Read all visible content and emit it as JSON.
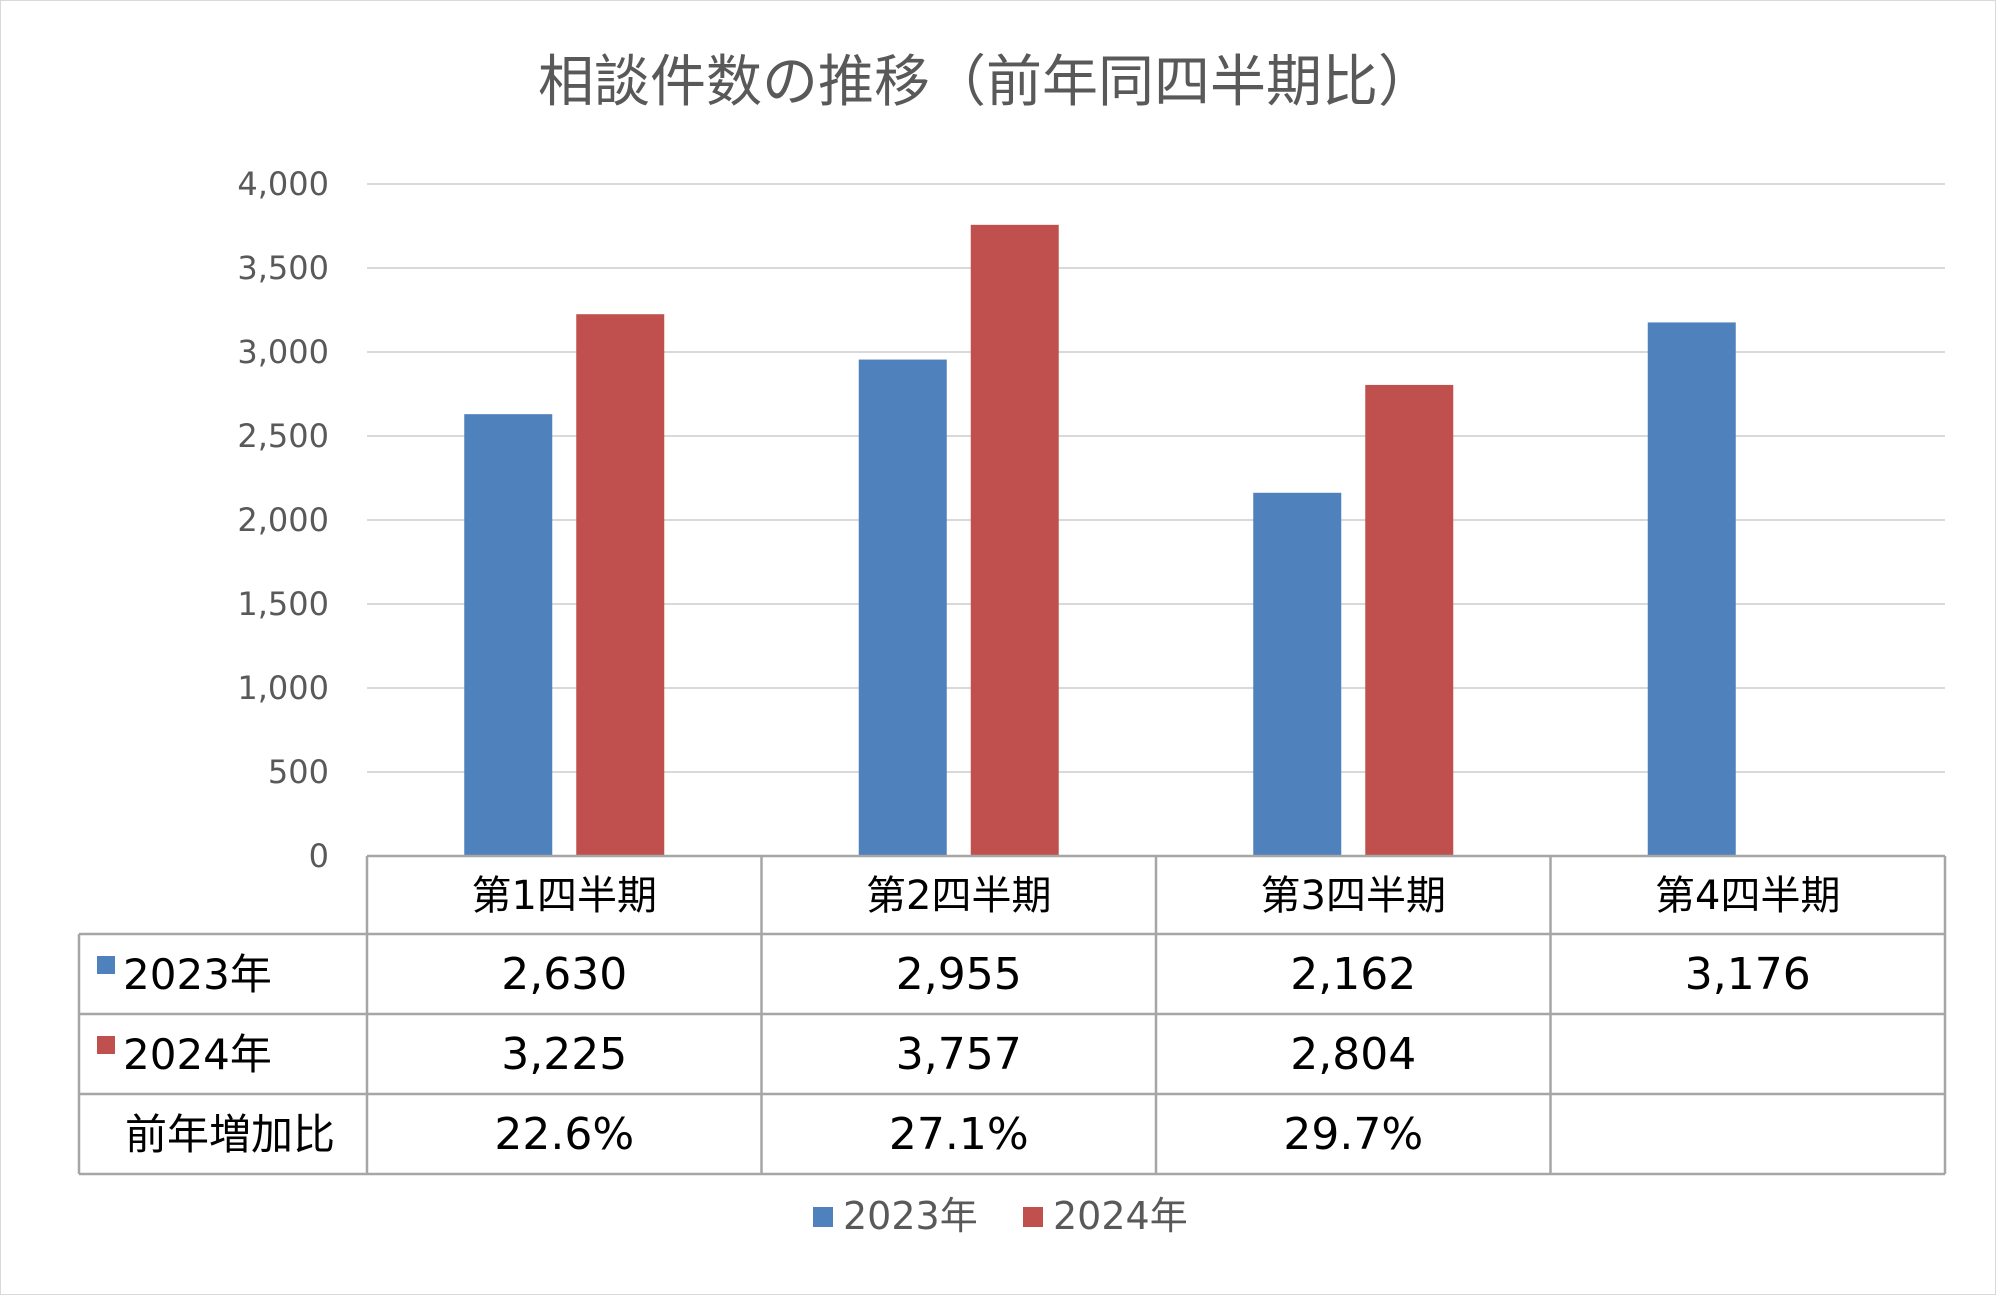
{
  "chart_data": {
    "type": "bar",
    "title": "相談件数の推移（前年同四半期比）",
    "categories": [
      "第1四半期",
      "第2四半期",
      "第3四半期",
      "第4四半期"
    ],
    "series": [
      {
        "name": "2023年",
        "color": "#4f81bd",
        "values": [
          2630,
          2955,
          2162,
          3176
        ]
      },
      {
        "name": "2024年",
        "color": "#c0504d",
        "values": [
          3225,
          3757,
          2804,
          null
        ]
      }
    ],
    "ylim": [
      0,
      4000
    ],
    "yticks": [
      "0",
      "500",
      "1,000",
      "1,500",
      "2,000",
      "2,500",
      "3,000",
      "3,500",
      "4,000"
    ],
    "grid": true,
    "legend": "bottom",
    "data_table": {
      "rows": [
        {
          "label": "2023年",
          "cells": [
            "2,630",
            "2,955",
            "2,162",
            "3,176"
          ]
        },
        {
          "label": "2024年",
          "cells": [
            "3,225",
            "3,757",
            "2,804",
            ""
          ]
        },
        {
          "label": "前年増加比",
          "cells": [
            "22.6%",
            "27.1%",
            "29.7%",
            ""
          ]
        }
      ]
    }
  }
}
